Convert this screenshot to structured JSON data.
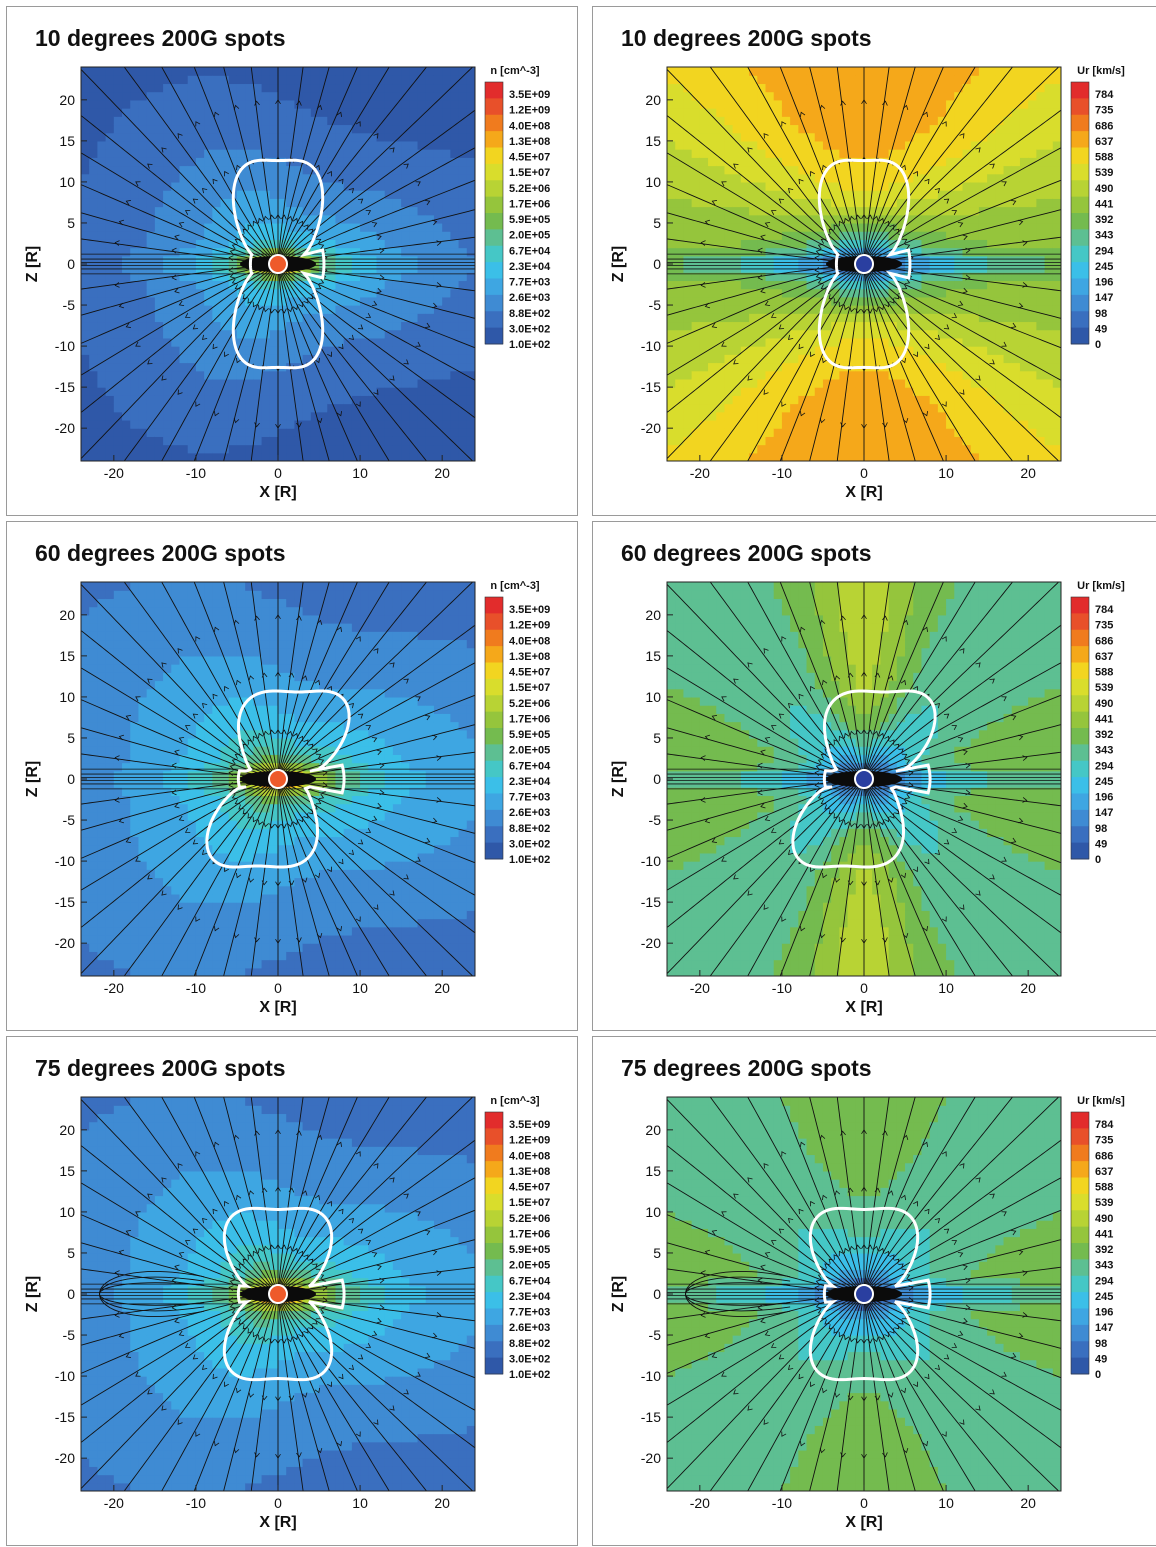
{
  "colorbars": {
    "density": {
      "title": "n [cm^-3]",
      "labels": [
        "3.5E+09",
        "1.2E+09",
        "4.0E+08",
        "1.3E+08",
        "4.5E+07",
        "1.5E+07",
        "5.2E+06",
        "1.7E+06",
        "5.9E+05",
        "2.0E+05",
        "6.7E+04",
        "2.3E+04",
        "7.7E+03",
        "2.6E+03",
        "8.8E+02",
        "3.0E+02",
        "1.0E+02"
      ]
    },
    "velocity": {
      "title": "Ur [km/s]",
      "labels": [
        "784",
        "735",
        "686",
        "637",
        "588",
        "539",
        "490",
        "441",
        "392",
        "343",
        "294",
        "245",
        "196",
        "147",
        "98",
        "49",
        "0"
      ]
    }
  },
  "chart_data": [
    {
      "type": "heatmap",
      "title": "10 degrees 200G spots",
      "xlabel": "X [R]",
      "ylabel": "Z [R]",
      "quantity": "density",
      "xlim": [
        -24,
        24
      ],
      "ylim": [
        -24,
        24
      ],
      "xticks": [
        -20,
        -10,
        0,
        10,
        20
      ],
      "yticks": [
        20,
        15,
        10,
        5,
        0,
        -5,
        -10,
        -15,
        -20
      ],
      "tilt_deg": 10,
      "boundary_height": 13.5,
      "field_lines": "open dipole, current sheet at Z=0",
      "annotation": "white closed-field boundary contour"
    },
    {
      "type": "heatmap",
      "title": "10 degrees 200G spots",
      "xlabel": "X [R]",
      "ylabel": "Z [R]",
      "quantity": "velocity",
      "xlim": [
        -24,
        24
      ],
      "ylim": [
        -24,
        24
      ],
      "xticks": [
        -20,
        -10,
        0,
        10,
        20
      ],
      "yticks": [
        20,
        15,
        10,
        5,
        0,
        -5,
        -10,
        -15,
        -20
      ],
      "tilt_deg": 10,
      "boundary_height": 13.5,
      "field_lines": "open dipole, current sheet at Z=0",
      "annotation": "white closed-field boundary contour"
    },
    {
      "type": "heatmap",
      "title": "60 degrees 200G spots",
      "xlabel": "X [R]",
      "ylabel": "Z [R]",
      "quantity": "density",
      "xlim": [
        -24,
        24
      ],
      "ylim": [
        -24,
        24
      ],
      "xticks": [
        -20,
        -10,
        0,
        10,
        20
      ],
      "yticks": [
        20,
        15,
        10,
        5,
        0,
        -5,
        -10,
        -15,
        -20
      ],
      "tilt_deg": 60,
      "boundary_height": 11.5,
      "field_lines": "open dipole, current sheet at Z=0",
      "annotation": "white closed-field boundary contour"
    },
    {
      "type": "heatmap",
      "title": "60 degrees 200G spots",
      "xlabel": "X [R]",
      "ylabel": "Z [R]",
      "quantity": "velocity",
      "xlim": [
        -24,
        24
      ],
      "ylim": [
        -24,
        24
      ],
      "xticks": [
        -20,
        -10,
        0,
        10,
        20
      ],
      "yticks": [
        20,
        15,
        10,
        5,
        0,
        -5,
        -10,
        -15,
        -20
      ],
      "tilt_deg": 60,
      "boundary_height": 11.5,
      "field_lines": "open dipole, current sheet at Z=0",
      "annotation": "white closed-field boundary contour"
    },
    {
      "type": "heatmap",
      "title": "75 degrees 200G spots",
      "xlabel": "X [R]",
      "ylabel": "Z [R]",
      "quantity": "density",
      "xlim": [
        -24,
        24
      ],
      "ylim": [
        -24,
        24
      ],
      "xticks": [
        -20,
        -10,
        0,
        10,
        20
      ],
      "yticks": [
        20,
        15,
        10,
        5,
        0,
        -5,
        -10,
        -15,
        -20
      ],
      "tilt_deg": 75,
      "boundary_height": 11.2,
      "field_lines": "open dipole, current sheet at Z=0",
      "annotation": "white closed-field boundary contour"
    },
    {
      "type": "heatmap",
      "title": "75 degrees 200G spots",
      "xlabel": "X [R]",
      "ylabel": "Z [R]",
      "quantity": "velocity",
      "xlim": [
        -24,
        24
      ],
      "ylim": [
        -24,
        24
      ],
      "xticks": [
        -20,
        -10,
        0,
        10,
        20
      ],
      "yticks": [
        20,
        15,
        10,
        5,
        0,
        -5,
        -10,
        -15,
        -20
      ],
      "tilt_deg": 75,
      "boundary_height": 11.2,
      "field_lines": "open dipole, current sheet at Z=0",
      "annotation": "white closed-field boundary contour"
    }
  ]
}
